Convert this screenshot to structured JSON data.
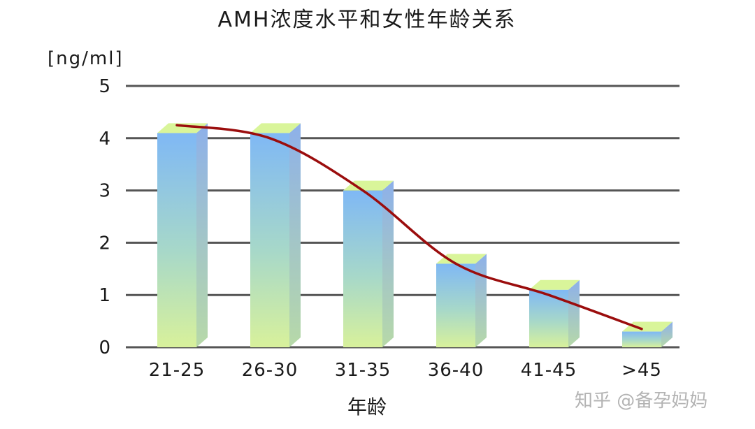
{
  "chart_data": {
    "type": "bar",
    "title": "AMH浓度水平和女性年龄关系",
    "ylabel": "[ng/ml]",
    "xlabel": "年龄",
    "categories": [
      "21-25",
      "26-30",
      "31-35",
      "36-40",
      "41-45",
      ">45"
    ],
    "values": [
      4.1,
      4.1,
      3.0,
      1.6,
      1.1,
      0.3
    ],
    "trend_values": [
      4.25,
      4.0,
      3.0,
      1.6,
      1.0,
      0.35
    ],
    "ylim": [
      0,
      5
    ],
    "yticks": [
      "0",
      "1",
      "2",
      "3",
      "4",
      "5"
    ],
    "grid": true,
    "colors": {
      "bar_top": "#7fb8f5",
      "bar_bottom": "#d6f09a",
      "bar_side": "#8fb3e8",
      "bar_cap": "#d9f59a",
      "curve": "#9b0d0d",
      "grid": "#555555"
    }
  },
  "watermark": "知乎 @备孕妈妈"
}
